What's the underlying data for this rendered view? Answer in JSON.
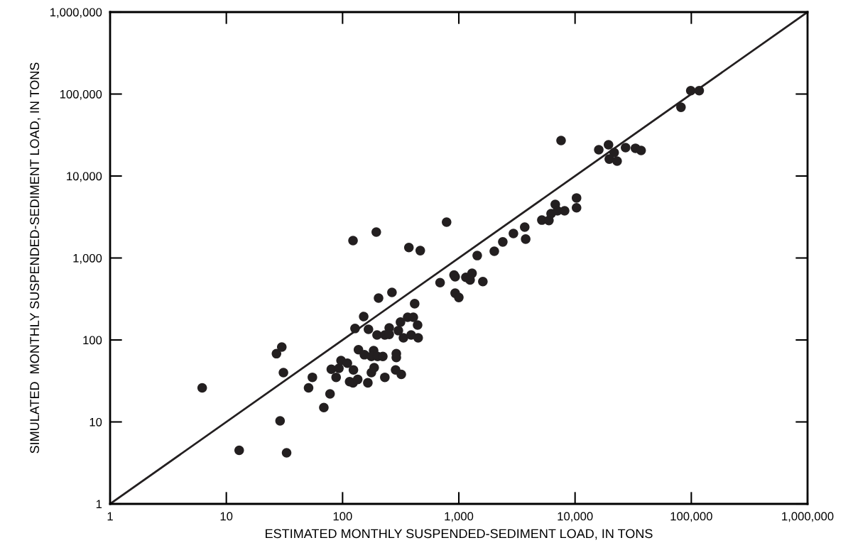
{
  "chart_data": {
    "type": "scatter",
    "xlabel": "ESTIMATED MONTHLY SUSPENDED-SEDIMENT LOAD, IN TONS",
    "ylabel": "SIMULATED  MONTHLY SUSPENDED-SEDIMENT LOAD, IN TONS",
    "log": "xy",
    "grid": false,
    "marker": "circle",
    "xlim": [
      1,
      1000000
    ],
    "ylim": [
      1,
      1000000
    ],
    "xticks": [
      1,
      10,
      100,
      {
        "value": 1000,
        "label": "1,000"
      },
      {
        "value": 10000,
        "label": "10,000"
      },
      {
        "value": 100000,
        "label": "100,000"
      },
      {
        "value": 1000000,
        "label": "1,000,000"
      }
    ],
    "yticks": [
      1,
      10,
      100,
      {
        "value": 1000,
        "label": "1,000"
      },
      {
        "value": 10000,
        "label": "10,000"
      },
      {
        "value": 100000,
        "label": "100,000"
      },
      {
        "value": 1000000,
        "label": "1,000,000"
      }
    ],
    "series": [
      {
        "color": "#231f20",
        "x": [
          6.2,
          12.9,
          29,
          33,
          27,
          30,
          31,
          51,
          55,
          69,
          78,
          80,
          88,
          93,
          97,
          110,
          124,
          115,
          123,
          135,
          137,
          154,
          165,
          177,
          187,
          185,
          177,
          200,
          222,
          231,
          290,
          290,
          286,
          320,
          128,
          152,
          167,
          198,
          231,
          252,
          252,
          302,
          315,
          334,
          363,
          406,
          442,
          389,
          447,
          417,
          204,
          266,
          123,
          195,
          372,
          466,
          690,
          930,
          910,
          930,
          1000,
          1150,
          1300,
          1250,
          1610,
          1440,
          785,
          2020,
          2390,
          2950,
          3690,
          3760,
          5180,
          5960,
          6220,
          6760,
          7060,
          8130,
          10300,
          10300,
          7580,
          16000,
          19400,
          21700,
          19700,
          23000,
          27200,
          33100,
          37000,
          81500,
          99000,
          117000
        ],
        "values": [
          26,
          4.5,
          10.3,
          4.2,
          68,
          82,
          40,
          26,
          35,
          15,
          22,
          44,
          35,
          45,
          56,
          52,
          43,
          31,
          30,
          33,
          76,
          66,
          30,
          40,
          46,
          74,
          63,
          63,
          63,
          35,
          68,
          61,
          43,
          38,
          138,
          193,
          135,
          115,
          115,
          140,
          117,
          130,
          165,
          106,
          189,
          189,
          152,
          115,
          106,
          277,
          324,
          380,
          1630,
          2070,
          1340,
          1230,
          500,
          590,
          620,
          372,
          330,
          580,
          650,
          540,
          515,
          1070,
          2740,
          1210,
          1570,
          1990,
          2380,
          1700,
          2900,
          2870,
          3480,
          4510,
          3760,
          3760,
          5400,
          4100,
          27100,
          20900,
          24000,
          19300,
          16100,
          15200,
          22200,
          21800,
          20500,
          69000,
          110000,
          110000
        ]
      },
      {
        "type": "line",
        "color": "#231f20",
        "marker": "none",
        "line_style": "solid",
        "x": [
          1,
          1000000
        ],
        "values": [
          1,
          1000000
        ]
      }
    ]
  }
}
